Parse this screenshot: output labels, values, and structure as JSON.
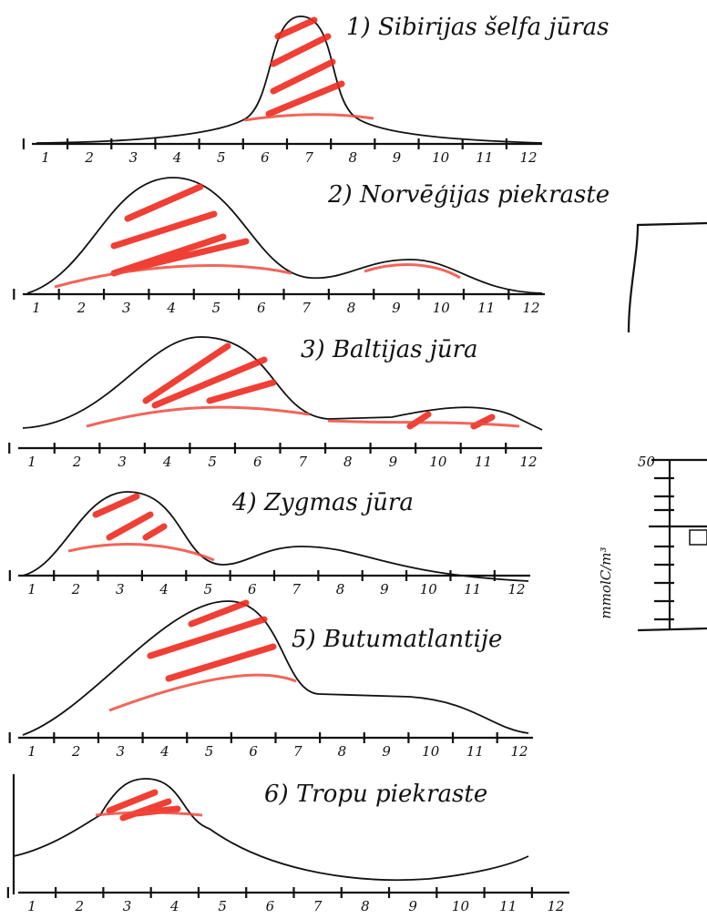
{
  "panels": [
    {
      "title": "1) Sibirijas šelfa jūras",
      "months": [
        "1",
        "2",
        "3",
        "4",
        "5",
        "6",
        "7",
        "8",
        "9",
        "10",
        "11",
        "12"
      ]
    },
    {
      "title": "2) Norvēģijas piekraste",
      "months": [
        "1",
        "2",
        "3",
        "4",
        "5",
        "6",
        "7",
        "8",
        "9",
        "10",
        "11",
        "12"
      ]
    },
    {
      "title": "3) Baltijas jūra",
      "months": [
        "1",
        "2",
        "3",
        "4",
        "5",
        "6",
        "7",
        "8",
        "9",
        "10",
        "11",
        "12"
      ]
    },
    {
      "title": "4) Zygmas jūra",
      "months": [
        "1",
        "2",
        "3",
        "4",
        "5",
        "6",
        "7",
        "8",
        "9",
        "10",
        "11",
        "12"
      ]
    },
    {
      "title": "5) Butumatlantije",
      "months": [
        "1",
        "2",
        "3",
        "4",
        "5",
        "6",
        "7",
        "8",
        "9",
        "10",
        "11",
        "12"
      ]
    },
    {
      "title": "6) Tropu piekraste",
      "months": [
        "1",
        "2",
        "3",
        "4",
        "5",
        "6",
        "7",
        "8",
        "9",
        "10",
        "11",
        "12"
      ]
    }
  ],
  "side_chart": {
    "y_label": "mmolC/m³",
    "top_tick": "50"
  }
}
